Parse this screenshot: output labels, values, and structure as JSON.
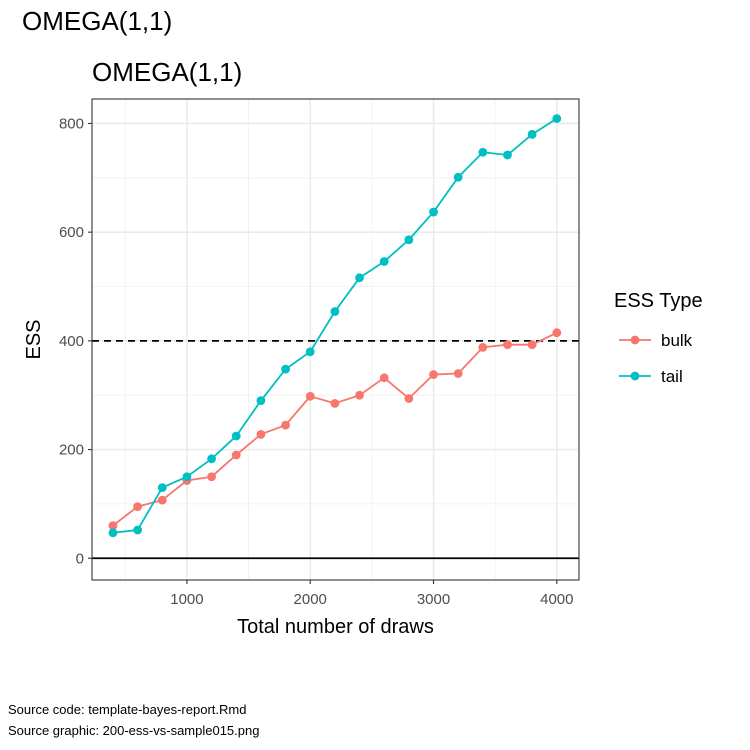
{
  "page": {
    "title": "OMEGA(1,1)",
    "source_code": "Source code: template-bayes-report.Rmd",
    "source_graphic": "Source graphic: 200-ess-vs-sample015.png"
  },
  "chart_data": {
    "type": "line",
    "title": "OMEGA(1,1)",
    "xlabel": "Total number of draws",
    "ylabel": "ESS",
    "xlim": [
      230,
      4180
    ],
    "ylim": [
      -40,
      845
    ],
    "x_ticks": [
      1000,
      2000,
      3000,
      4000
    ],
    "y_ticks": [
      0,
      200,
      400,
      600,
      800
    ],
    "x_minor": [
      500,
      1500,
      2500,
      3500
    ],
    "y_minor": [
      100,
      300,
      500,
      700
    ],
    "hline_solid": 0,
    "hline_dashed": 400,
    "grid": true,
    "legend": {
      "title": "ESS Type",
      "position": "right"
    },
    "x": [
      400,
      600,
      800,
      1000,
      1200,
      1400,
      1600,
      1800,
      2000,
      2200,
      2400,
      2600,
      2800,
      3000,
      3200,
      3400,
      3600,
      3800,
      4000
    ],
    "series": [
      {
        "name": "bulk",
        "color": "#F8766D",
        "values": [
          60,
          95,
          107,
          143,
          150,
          190,
          228,
          245,
          298,
          285,
          300,
          332,
          294,
          338,
          340,
          388,
          393,
          393,
          415
        ]
      },
      {
        "name": "tail",
        "color": "#00BFC4",
        "values": [
          47,
          52,
          130,
          150,
          183,
          225,
          290,
          348,
          380,
          454,
          516,
          546,
          586,
          637,
          701,
          747,
          742,
          780,
          809
        ]
      }
    ]
  }
}
